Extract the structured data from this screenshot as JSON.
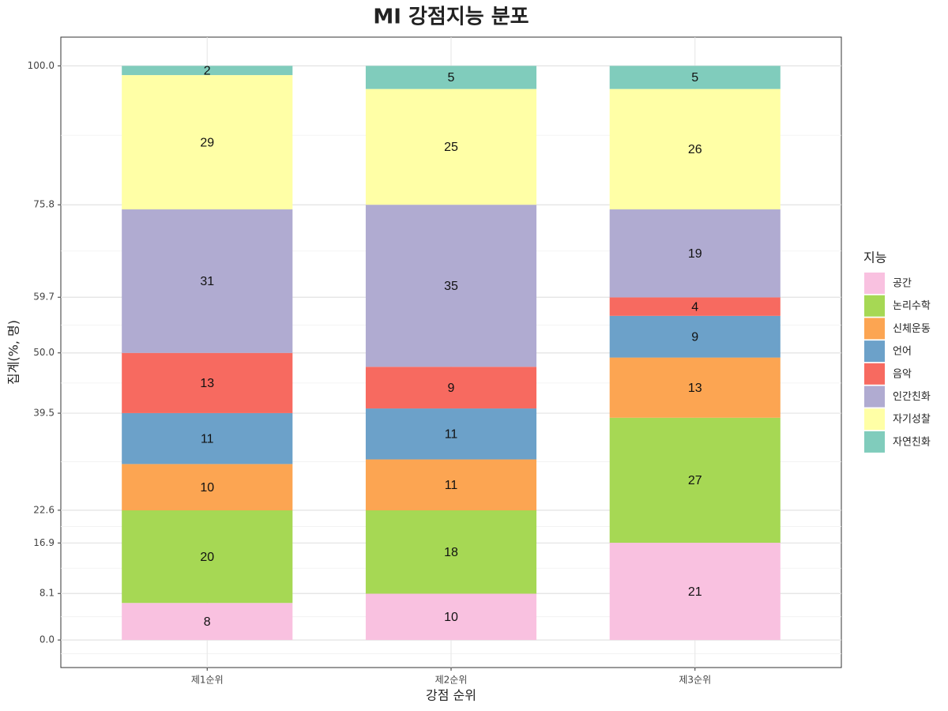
{
  "chart_data": {
    "type": "bar",
    "stacking": "percent",
    "title": "MI 강점지능 분포",
    "x_label": "강점 순위",
    "y_label": "집계(%, 명)",
    "legend_title": "지능",
    "legend_position": "right",
    "categories": [
      "제1순위",
      "제2순위",
      "제3순위"
    ],
    "series": [
      {
        "name": "공간",
        "color": "#F9C1E0",
        "values": [
          8,
          10,
          21
        ]
      },
      {
        "name": "논리수학",
        "color": "#A6D854",
        "values": [
          20,
          18,
          27
        ]
      },
      {
        "name": "신체운동",
        "color": "#FCA552",
        "values": [
          10,
          11,
          13
        ]
      },
      {
        "name": "언어",
        "color": "#6CA1C9",
        "values": [
          11,
          11,
          9
        ]
      },
      {
        "name": "음악",
        "color": "#F76A60",
        "values": [
          13,
          9,
          4
        ]
      },
      {
        "name": "인간친화",
        "color": "#B0ABD1",
        "values": [
          31,
          35,
          19
        ]
      },
      {
        "name": "자기성찰",
        "color": "#FFFFA6",
        "values": [
          29,
          25,
          26
        ]
      },
      {
        "name": "자연친화",
        "color": "#80CCBC",
        "values": [
          2,
          5,
          5
        ]
      }
    ],
    "ylim": [
      -4.8,
      105
    ],
    "yticks": [
      {
        "value": 0,
        "label": "0.0"
      },
      8.1,
      16.9,
      22.6,
      39.5,
      {
        "value": 50,
        "label": "50.0"
      },
      59.7,
      75.8,
      {
        "value": 100,
        "label": "100.0"
      }
    ],
    "grid": true
  }
}
